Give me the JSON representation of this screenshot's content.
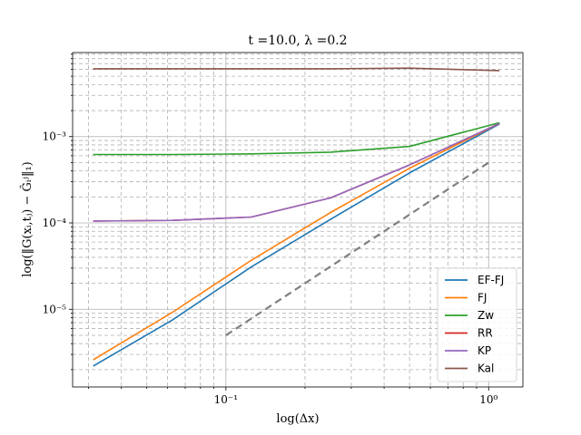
{
  "chart_data": {
    "type": "line",
    "title": "t =10.0, λ =0.2",
    "xlabel": "log(Δx)",
    "ylabel": "log(‖G(xᵢ,tⱼ) − Ĝᵢʲ‖₁)",
    "x_scale": "log",
    "y_scale": "log",
    "xlim": [
      0.0261,
      1.35
    ],
    "ylim": [
      1.26e-06,
      0.0094
    ],
    "grid": true,
    "legend_position": "lower-right",
    "x_tick_labels": [
      {
        "value": 0.1,
        "label": "10⁻¹"
      },
      {
        "value": 1,
        "label": "10⁰"
      }
    ],
    "y_tick_labels": [
      {
        "value": 1e-05,
        "label": "10⁻⁵"
      },
      {
        "value": 0.0001,
        "label": "10⁻⁴"
      },
      {
        "value": 0.001,
        "label": "10⁻³"
      }
    ],
    "series": [
      {
        "name": "EF-FJ",
        "color": "#1f77b4",
        "style": "solid",
        "x": [
          0.03125,
          0.0625,
          0.125,
          0.25,
          0.5,
          1.1
        ],
        "y": [
          2.2e-06,
          7.5e-06,
          3.1e-05,
          0.00011,
          0.00038,
          0.0014
        ]
      },
      {
        "name": "FJ",
        "color": "#ff7f0e",
        "style": "solid",
        "x": [
          0.03125,
          0.0625,
          0.125,
          0.25,
          0.5,
          1.1
        ],
        "y": [
          2.6e-06,
          9.2e-06,
          3.7e-05,
          0.000132,
          0.00043,
          0.00142
        ]
      },
      {
        "name": "Zw",
        "color": "#2ca02c",
        "style": "solid",
        "x": [
          0.03125,
          0.0625,
          0.125,
          0.25,
          0.5,
          1.1
        ],
        "y": [
          0.00062,
          0.00062,
          0.00063,
          0.00066,
          0.00077,
          0.00145
        ]
      },
      {
        "name": "RR",
        "color": "#d62728",
        "style": "solid",
        "x": [
          0.03125,
          0.0625,
          0.125,
          0.25,
          0.5,
          1.1
        ],
        "y": [
          0.000105,
          0.000107,
          0.000117,
          0.000195,
          0.00047,
          0.00142
        ]
      },
      {
        "name": "KP",
        "color": "#9467bd",
        "style": "solid",
        "x": [
          0.03125,
          0.0625,
          0.125,
          0.25,
          0.5,
          1.1
        ],
        "y": [
          0.000105,
          0.000107,
          0.000117,
          0.000195,
          0.00047,
          0.00142
        ]
      },
      {
        "name": "Kal",
        "color": "#8c564b",
        "style": "solid",
        "x": [
          0.03125,
          0.0625,
          0.125,
          0.25,
          0.5,
          1.1
        ],
        "y": [
          0.0061,
          0.0061,
          0.0061,
          0.0061,
          0.0062,
          0.0058
        ]
      },
      {
        "name": "",
        "color": "#808080",
        "style": "dashed",
        "x": [
          0.1,
          1.0
        ],
        "y": [
          5e-06,
          0.0005
        ]
      }
    ]
  }
}
